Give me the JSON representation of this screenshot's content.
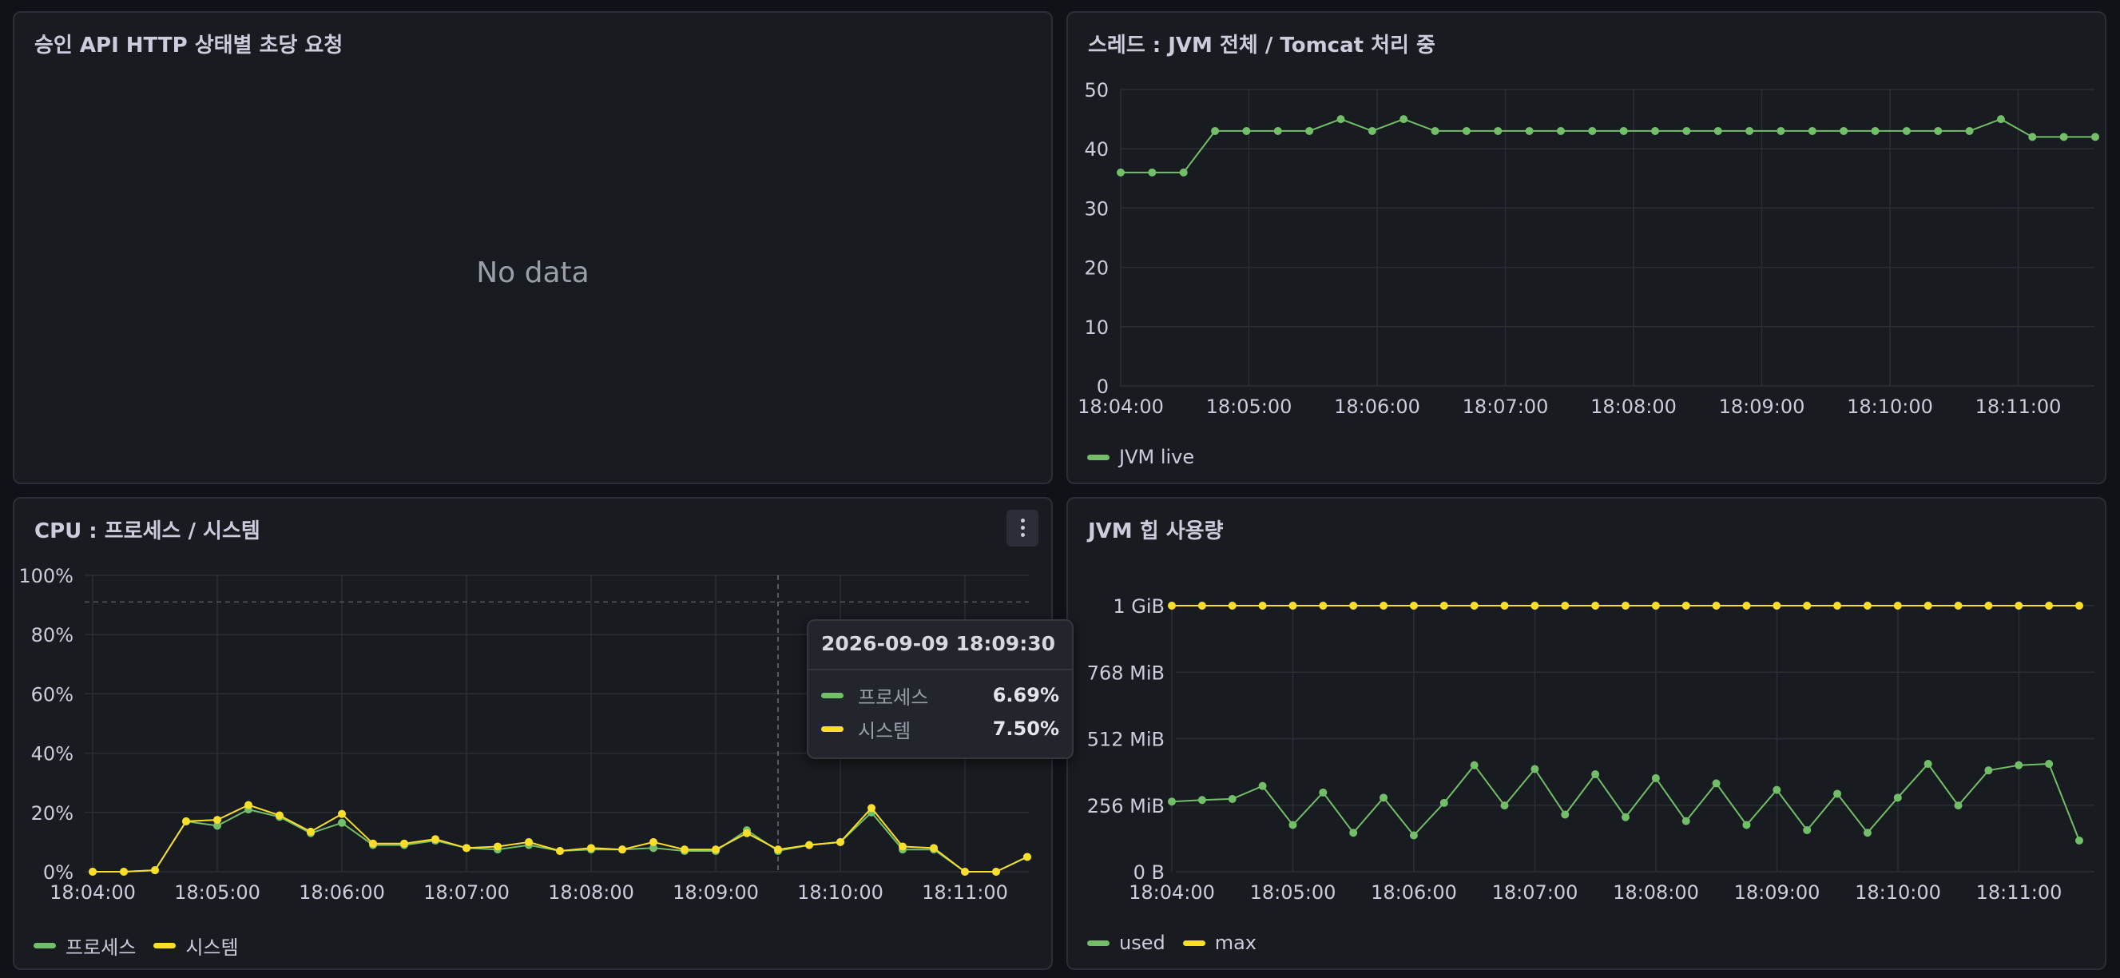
{
  "colors": {
    "green": "#73bf69",
    "yellow": "#fade2a",
    "grid": "#2b2e36"
  },
  "panel1": {
    "title": "승인 API HTTP 상태별 초당 요청",
    "no_data": "No data"
  },
  "panel2": {
    "title": "스레드 : JVM 전체 / Tomcat 처리 중",
    "legend": [
      {
        "label": "JVM live",
        "color": "#73bf69"
      }
    ]
  },
  "panel3": {
    "title": "CPU : 프로세스 / 시스템",
    "menu_icon": "kebab-menu-icon",
    "legend": [
      {
        "label": "프로세스",
        "color": "#73bf69"
      },
      {
        "label": "시스템",
        "color": "#fade2a"
      }
    ],
    "tooltip": {
      "time": "2026-09-09 18:09:30",
      "rows": [
        {
          "name": "프로세스",
          "value": "6.69%",
          "color": "#73bf69"
        },
        {
          "name": "시스템",
          "value": "7.50%",
          "color": "#fade2a"
        }
      ]
    }
  },
  "panel4": {
    "title": "JVM 힙 사용량",
    "legend": [
      {
        "label": "used",
        "color": "#73bf69"
      },
      {
        "label": "max",
        "color": "#fade2a"
      }
    ]
  },
  "chart_data": [
    {
      "type": "line",
      "title": "스레드 : JVM 전체 / Tomcat 처리 중",
      "x_ticks": [
        "18:04:00",
        "18:05:00",
        "18:06:00",
        "18:07:00",
        "18:08:00",
        "18:09:00",
        "18:10:00",
        "18:11:00"
      ],
      "y_ticks": [
        "0",
        "10",
        "20",
        "30",
        "40",
        "50"
      ],
      "ylim": [
        0,
        50
      ],
      "series": [
        {
          "name": "JVM live",
          "color": "#73bf69",
          "values": [
            36,
            36,
            36,
            43,
            43,
            43,
            43,
            45,
            43,
            45,
            43,
            43,
            43,
            43,
            43,
            43,
            43,
            43,
            43,
            43,
            43,
            43,
            43,
            43,
            43,
            43,
            43,
            43,
            45,
            42,
            42,
            42
          ]
        }
      ]
    },
    {
      "type": "line",
      "title": "CPU : 프로세스 / 시스템",
      "x_ticks": [
        "18:04:00",
        "18:05:00",
        "18:06:00",
        "18:07:00",
        "18:08:00",
        "18:09:00",
        "18:10:00",
        "18:11:00"
      ],
      "y_ticks": [
        "0%",
        "20%",
        "40%",
        "60%",
        "80%",
        "100%"
      ],
      "ylim": [
        0,
        100
      ],
      "threshold": 91,
      "cursor_x": "18:09:30",
      "series": [
        {
          "name": "프로세스",
          "color": "#73bf69",
          "values": [
            0,
            0,
            0.5,
            17,
            15.5,
            21,
            18.5,
            13,
            16.5,
            9,
            9,
            10.5,
            8,
            7.5,
            9,
            7,
            7.5,
            7.5,
            8,
            7,
            7,
            14,
            7,
            9,
            10,
            20,
            7.5,
            7.5,
            0,
            0,
            5
          ]
        },
        {
          "name": "시스템",
          "color": "#fade2a",
          "values": [
            0,
            0,
            0.5,
            17,
            17.5,
            22.5,
            19,
            13.5,
            19.5,
            9.5,
            9.5,
            11,
            8,
            8.5,
            10,
            7,
            8,
            7.5,
            10,
            7.5,
            7.5,
            13,
            7.5,
            9,
            10,
            21.5,
            8.5,
            8,
            0,
            0,
            5
          ]
        }
      ]
    },
    {
      "type": "line",
      "title": "JVM 힙 사용량",
      "x_ticks": [
        "18:04:00",
        "18:05:00",
        "18:06:00",
        "18:07:00",
        "18:08:00",
        "18:09:00",
        "18:10:00",
        "18:11:00"
      ],
      "y_ticks": [
        "0 B",
        "256 MiB",
        "512 MiB",
        "768 MiB",
        "1 GiB"
      ],
      "ylim": [
        0,
        1024
      ],
      "series": [
        {
          "name": "used",
          "color": "#73bf69",
          "values": [
            270,
            276,
            280,
            330,
            180,
            305,
            150,
            285,
            140,
            265,
            410,
            255,
            395,
            220,
            375,
            210,
            360,
            195,
            340,
            180,
            315,
            160,
            300,
            150,
            285,
            415,
            255,
            390,
            410,
            415,
            120
          ]
        },
        {
          "name": "max",
          "color": "#fade2a",
          "values": [
            1024,
            1024,
            1024,
            1024,
            1024,
            1024,
            1024,
            1024,
            1024,
            1024,
            1024,
            1024,
            1024,
            1024,
            1024,
            1024,
            1024,
            1024,
            1024,
            1024,
            1024,
            1024,
            1024,
            1024,
            1024,
            1024,
            1024,
            1024,
            1024,
            1024,
            1024
          ]
        }
      ]
    }
  ]
}
